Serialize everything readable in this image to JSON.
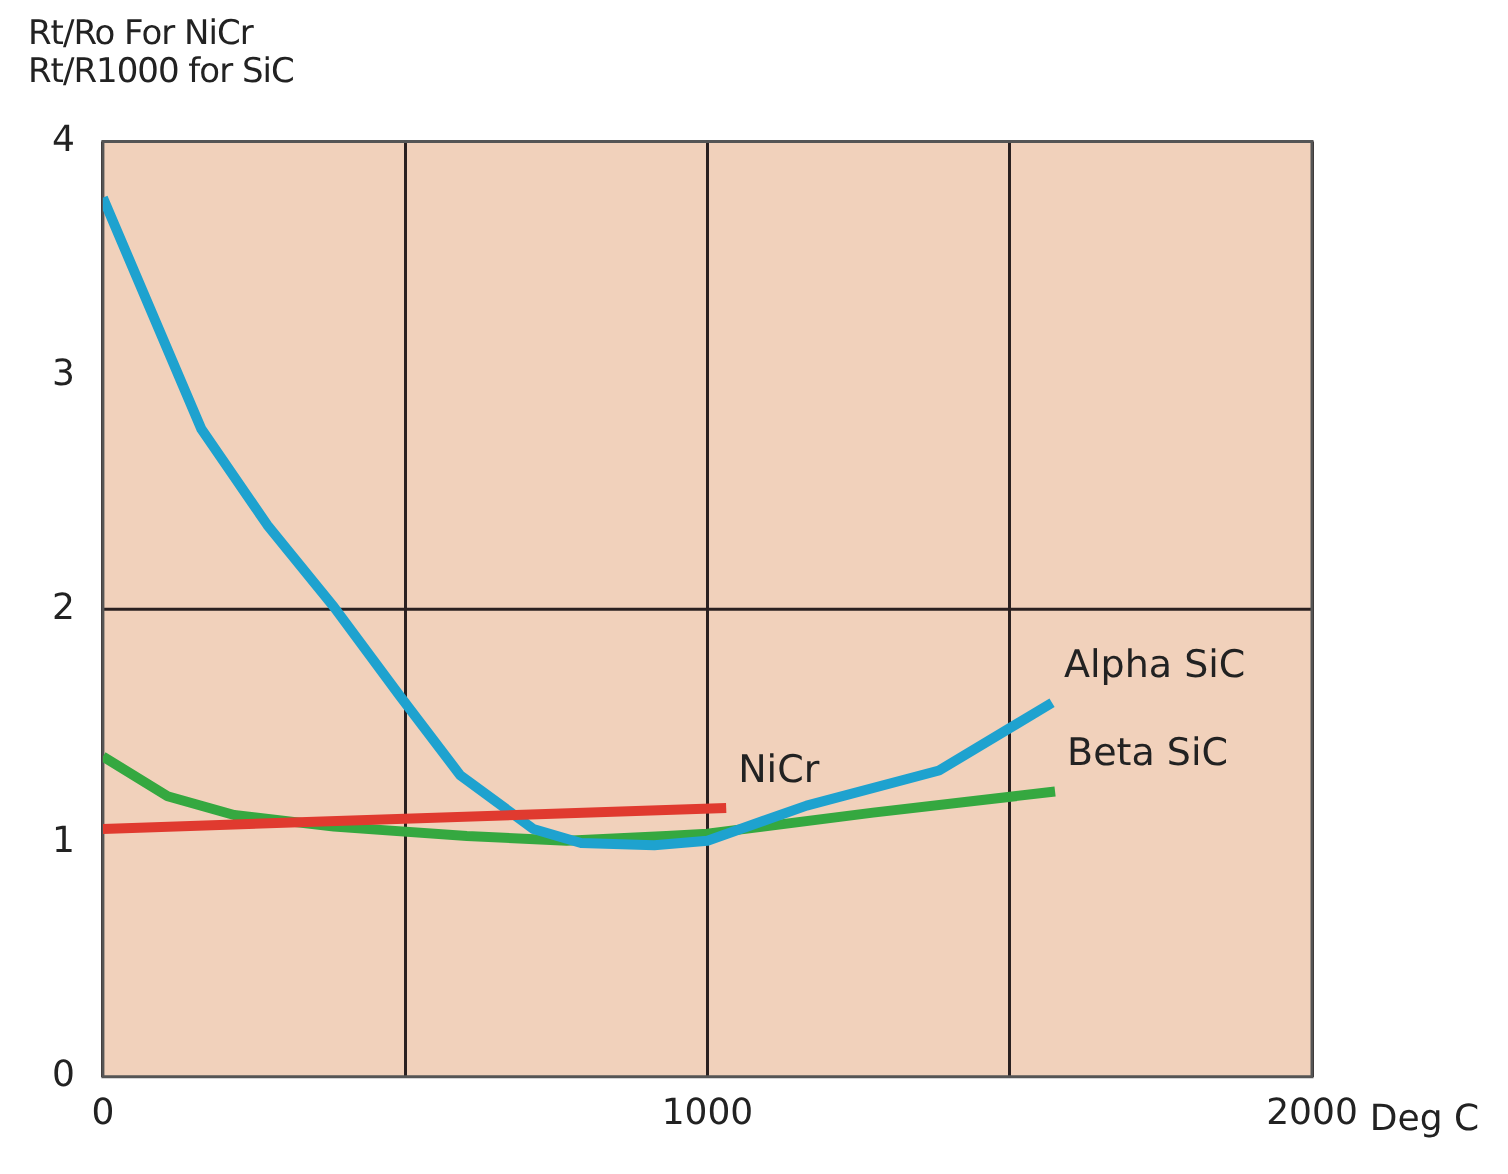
{
  "chart_data": {
    "type": "line",
    "ylabel": "Rt/Ro For NiCr\nRt/R1000 for SiC",
    "xlabel": "Deg C",
    "xlim": [
      0,
      2000
    ],
    "xticks": [
      0,
      {
        "value": 500,
        "label": null
      },
      1000,
      {
        "value": 1500,
        "label": null
      },
      {
        "value": 2000,
        "label": "2000"
      }
    ],
    "ylim": [
      0,
      4
    ],
    "yticks": [
      0,
      1,
      2,
      3,
      4
    ],
    "grid": "x",
    "legend": false,
    "marker": "none",
    "line_style": "solid",
    "ref_lines": [
      {
        "axis": "y",
        "value": 2,
        "color": "#2a2020"
      }
    ],
    "series": [
      {
        "name": "NiCr",
        "color": "#e03a2f",
        "x": [
          0,
          1031
        ],
        "values": [
          1.06,
          1.15
        ]
      },
      {
        "name": "Alpha SiC",
        "color": "#1ea2cf",
        "x": [
          0,
          163,
          272,
          382,
          491,
          591,
          712,
          791,
          912,
          1000,
          1164,
          1383,
          1570
        ],
        "values": [
          3.76,
          2.77,
          2.36,
          2.01,
          1.63,
          1.29,
          1.06,
          1.0,
          0.99,
          1.01,
          1.16,
          1.31,
          1.6
        ]
      },
      {
        "name": "Beta SiC",
        "color": "#35a840",
        "x": [
          0,
          107,
          217,
          382,
          602,
          767,
          932,
          1000,
          1274,
          1575
        ],
        "values": [
          1.37,
          1.2,
          1.12,
          1.07,
          1.03,
          1.01,
          1.03,
          1.04,
          1.13,
          1.22
        ]
      }
    ]
  }
}
